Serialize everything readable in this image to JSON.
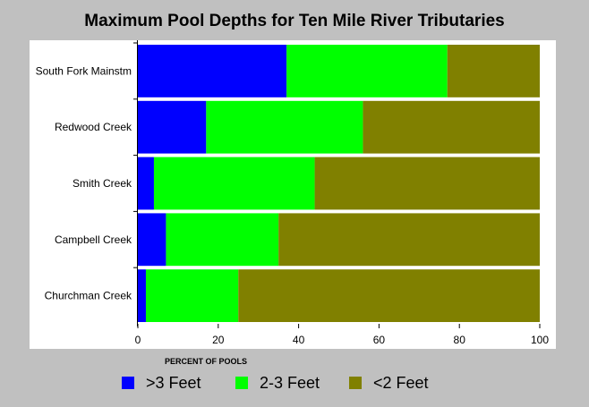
{
  "chart_data": {
    "type": "bar",
    "orientation": "horizontal",
    "stacked": true,
    "title": "Maximum Pool Depths for Ten Mile River Tributaries",
    "xlabel": "PERCENT OF POOLS",
    "ylabel": "",
    "xlim": [
      0,
      100
    ],
    "xticks": [
      0,
      20,
      40,
      60,
      80,
      100
    ],
    "grid": false,
    "legend_position": "bottom",
    "categories": [
      "South Fork Mainstm",
      "Redwood Creek",
      "Smith Creek",
      "Campbell Creek",
      "Churchman Creek"
    ],
    "series": [
      {
        "name": ">3 Feet",
        "color": "#0000ff",
        "values": [
          37,
          17,
          4,
          7,
          2
        ]
      },
      {
        "name": "2-3 Feet",
        "color": "#00ff00",
        "values": [
          40,
          39,
          40,
          28,
          23
        ]
      },
      {
        "name": "<2 Feet",
        "color": "#808000",
        "values": [
          23,
          44,
          56,
          65,
          75
        ]
      }
    ]
  },
  "colors": {
    "background": "#c0c0c0",
    "plot_background": "#ffffff",
    "separator": "#ffffff"
  }
}
